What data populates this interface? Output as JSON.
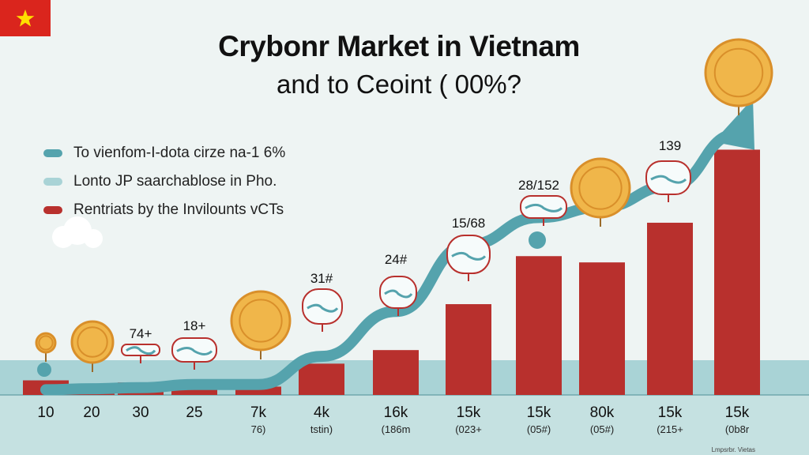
{
  "header": {
    "title": "Crybonr Market in Vietnam",
    "subtitle": "and to Ceoint ( 00%?"
  },
  "flag": {
    "color": "#da251d",
    "star_color": "#ffde00",
    "icon": "star-icon"
  },
  "legend": [
    {
      "label": "To vienfom-I-dota cirze na-1 6%",
      "color": "#55a3ad"
    },
    {
      "label": "Lonto JP saarchablose in Pho.",
      "color": "#a9d3d6"
    },
    {
      "label": "Rentriats by the Invilounts vCTs",
      "color": "#b8302d"
    }
  ],
  "chart_data": {
    "type": "bar",
    "categories": [
      "10",
      "20",
      "30",
      "25",
      "7k",
      "4k",
      "16k",
      "15k",
      "15k",
      "80k",
      "15k",
      "15k"
    ],
    "category_sublabels": [
      "",
      "",
      "",
      "",
      "76)",
      "tstin)",
      "(186m",
      "(023+",
      "(05#)",
      "(05#)",
      "(215+",
      "(0b8r"
    ],
    "values": [
      14,
      6,
      12,
      14,
      8,
      30,
      43,
      87,
      133,
      127,
      165,
      235
    ],
    "trend_values": [
      5,
      6,
      7,
      10,
      10,
      37,
      80,
      144,
      170,
      180,
      200,
      250
    ],
    "point_labels": [
      "",
      "",
      "74+",
      "18+",
      "",
      "31#",
      "24#",
      "15/68",
      "28/152",
      "",
      "139",
      ""
    ],
    "ylim": [
      0,
      280
    ],
    "colors": {
      "bars": "#b8302d",
      "trend": "#55a3ad",
      "coin": "#f0b64a",
      "coin_edge": "#d98f2a"
    }
  },
  "footer": {
    "note": "Lmpsrbr. Vietas"
  }
}
